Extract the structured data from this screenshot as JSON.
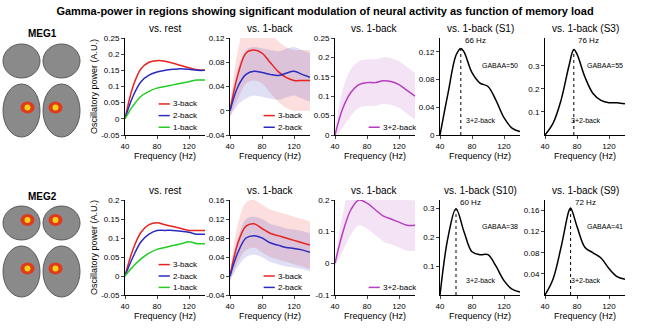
{
  "title": "Gamma-power in regions showing significant modulation of neural activity as function of memory load",
  "chart_data": [
    {
      "type": "line",
      "group": "MEG1",
      "title": "vs. rest",
      "x_label": "Frequency (Hz)",
      "y_label": "Oscillatory power (A.U.)",
      "xlim": [
        40,
        140
      ],
      "xticks": [
        40,
        80,
        120
      ],
      "ylim": [
        -0.05,
        0.25
      ],
      "yticks": [
        -0.05,
        0,
        0.05,
        0.1,
        0.15,
        0.2,
        0.25
      ],
      "legend": "lower right",
      "x": [
        40,
        50,
        60,
        70,
        80,
        90,
        100,
        110,
        120,
        130,
        140
      ],
      "series": [
        {
          "name": "3-back",
          "color": "#e8231f",
          "values": [
            0.0,
            0.1,
            0.155,
            0.175,
            0.18,
            0.178,
            0.172,
            0.165,
            0.158,
            0.152,
            0.15
          ]
        },
        {
          "name": "2-back",
          "color": "#2b2bbf",
          "values": [
            0.0,
            0.07,
            0.115,
            0.135,
            0.145,
            0.15,
            0.153,
            0.155,
            0.153,
            0.15,
            0.15
          ]
        },
        {
          "name": "1-back",
          "color": "#22cc22",
          "values": [
            0.0,
            0.04,
            0.07,
            0.085,
            0.095,
            0.1,
            0.105,
            0.11,
            0.115,
            0.12,
            0.12
          ]
        }
      ]
    },
    {
      "type": "line",
      "group": "MEG1",
      "title": "vs. 1-back",
      "x_label": "Frequency (Hz)",
      "xlim": [
        40,
        140
      ],
      "xticks": [
        40,
        80,
        120
      ],
      "ylim": [
        -0.04,
        0.12
      ],
      "yticks": [
        -0.04,
        0,
        0.04,
        0.08,
        0.12
      ],
      "legend": "lower right",
      "x": [
        40,
        50,
        60,
        70,
        80,
        90,
        100,
        110,
        120,
        130,
        140
      ],
      "series": [
        {
          "name": "3-back",
          "color": "#e8231f",
          "values": [
            0.0,
            0.06,
            0.095,
            0.1,
            0.095,
            0.08,
            0.065,
            0.055,
            0.05,
            0.05,
            0.05
          ],
          "error": [
            0.01,
            0.04,
            0.05,
            0.05,
            0.05,
            0.05,
            0.05,
            0.05,
            0.05,
            0.05,
            0.05
          ]
        },
        {
          "name": "2-back",
          "color": "#2b2bbf",
          "values": [
            0.0,
            0.04,
            0.06,
            0.065,
            0.063,
            0.06,
            0.058,
            0.062,
            0.065,
            0.06,
            0.055
          ],
          "error": [
            0.01,
            0.03,
            0.04,
            0.04,
            0.04,
            0.04,
            0.04,
            0.04,
            0.04,
            0.04,
            0.04
          ]
        }
      ]
    },
    {
      "type": "line",
      "group": "MEG1",
      "title": "vs. 1-back",
      "x_label": "Frequency (Hz)",
      "xlim": [
        40,
        140
      ],
      "xticks": [
        40,
        80,
        120
      ],
      "ylim": [
        0,
        0.25
      ],
      "yticks": [
        0,
        0.05,
        0.1,
        0.15,
        0.2,
        0.25
      ],
      "legend": "lower right",
      "x": [
        40,
        50,
        60,
        70,
        80,
        90,
        100,
        110,
        120,
        130,
        140
      ],
      "series": [
        {
          "name": "3+2-back",
          "color": "#b43fbf",
          "values": [
            0.0,
            0.07,
            0.11,
            0.13,
            0.135,
            0.135,
            0.14,
            0.138,
            0.13,
            0.115,
            0.1
          ],
          "error": [
            0.01,
            0.05,
            0.06,
            0.06,
            0.06,
            0.06,
            0.06,
            0.06,
            0.06,
            0.06,
            0.06
          ]
        }
      ]
    },
    {
      "type": "line",
      "group": "MEG1",
      "title": "vs. 1-back (S1)",
      "x_label": "Frequency (Hz)",
      "xlim": [
        40,
        140
      ],
      "xticks": [
        40,
        80,
        120
      ],
      "ylim": [
        0,
        0.14
      ],
      "yticks": [
        0,
        0.04,
        0.08,
        0.12
      ],
      "x": [
        40,
        50,
        60,
        66,
        70,
        80,
        90,
        100,
        110,
        120,
        130,
        140
      ],
      "series": [
        {
          "color": "#000000",
          "values": [
            0.0,
            0.06,
            0.115,
            0.125,
            0.12,
            0.09,
            0.075,
            0.07,
            0.05,
            0.025,
            0.01,
            0.005
          ]
        }
      ],
      "vline": {
        "value": 66,
        "label": "66 Hz"
      },
      "annotations": [
        "GABAA=50",
        "3+2-back"
      ]
    },
    {
      "type": "line",
      "group": "MEG1",
      "title": "vs. 1-back (S3)",
      "x_label": "Frequency (Hz)",
      "xlim": [
        40,
        140
      ],
      "xticks": [
        40,
        80,
        120
      ],
      "ylim": [
        0,
        0.42
      ],
      "yticks": [
        0.1,
        0.2,
        0.3
      ],
      "x": [
        40,
        50,
        60,
        70,
        76,
        80,
        90,
        100,
        110,
        120,
        130,
        140
      ],
      "series": [
        {
          "color": "#000000",
          "values": [
            0.0,
            0.05,
            0.15,
            0.3,
            0.37,
            0.35,
            0.25,
            0.18,
            0.15,
            0.14,
            0.14,
            0.135
          ]
        }
      ],
      "vline": {
        "value": 76,
        "label": "76 Hz"
      },
      "annotations": [
        "GABAA=55",
        "3+2-back"
      ]
    },
    {
      "type": "line",
      "group": "MEG2",
      "title": "vs. rest",
      "x_label": "Frequency (Hz)",
      "y_label": "Oscillatory power (A.U.)",
      "xlim": [
        40,
        140
      ],
      "xticks": [
        40,
        80,
        120
      ],
      "ylim": [
        -0.05,
        0.2
      ],
      "yticks": [
        -0.05,
        0,
        0.05,
        0.1,
        0.15,
        0.2
      ],
      "legend": "lower right",
      "x": [
        40,
        50,
        60,
        70,
        80,
        90,
        100,
        110,
        120,
        130,
        140
      ],
      "series": [
        {
          "name": "3-back",
          "color": "#e8231f",
          "values": [
            0.0,
            0.07,
            0.115,
            0.135,
            0.14,
            0.135,
            0.13,
            0.125,
            0.12,
            0.12,
            0.12
          ]
        },
        {
          "name": "2-back",
          "color": "#2b2bbf",
          "values": [
            0.0,
            0.05,
            0.09,
            0.11,
            0.12,
            0.12,
            0.12,
            0.118,
            0.115,
            0.11,
            0.11
          ]
        },
        {
          "name": "1-back",
          "color": "#22cc22",
          "values": [
            0.0,
            0.025,
            0.045,
            0.06,
            0.07,
            0.075,
            0.08,
            0.085,
            0.09,
            0.085,
            0.085
          ]
        }
      ]
    },
    {
      "type": "line",
      "group": "MEG2",
      "title": "vs. 1-back",
      "x_label": "Frequency (Hz)",
      "xlim": [
        40,
        140
      ],
      "xticks": [
        40,
        80,
        120
      ],
      "ylim": [
        -0.04,
        0.16
      ],
      "yticks": [
        -0.04,
        0,
        0.04,
        0.08,
        0.12,
        0.16
      ],
      "legend": "lower right",
      "x": [
        40,
        50,
        60,
        70,
        80,
        90,
        100,
        110,
        120,
        130,
        140
      ],
      "series": [
        {
          "name": "3-back",
          "color": "#e8231f",
          "values": [
            0.0,
            0.07,
            0.105,
            0.11,
            0.1,
            0.09,
            0.085,
            0.08,
            0.075,
            0.07,
            0.065
          ],
          "error": [
            0.01,
            0.04,
            0.05,
            0.05,
            0.05,
            0.05,
            0.05,
            0.05,
            0.05,
            0.05,
            0.05
          ]
        },
        {
          "name": "2-back",
          "color": "#2b2bbf",
          "values": [
            0.0,
            0.05,
            0.08,
            0.085,
            0.08,
            0.07,
            0.065,
            0.06,
            0.058,
            0.055,
            0.05
          ],
          "error": [
            0.01,
            0.03,
            0.04,
            0.04,
            0.04,
            0.04,
            0.04,
            0.04,
            0.04,
            0.04,
            0.04
          ]
        }
      ]
    },
    {
      "type": "line",
      "group": "MEG2",
      "title": "vs. 1-back",
      "x_label": "Frequency (Hz)",
      "xlim": [
        40,
        140
      ],
      "xticks": [
        40,
        80,
        120
      ],
      "ylim": [
        -0.1,
        0.2
      ],
      "yticks": [
        -0.1,
        0,
        0.1,
        0.2
      ],
      "legend": "lower right",
      "x": [
        40,
        50,
        60,
        70,
        80,
        90,
        100,
        110,
        120,
        130,
        140
      ],
      "series": [
        {
          "name": "3+2-back",
          "color": "#b43fbf",
          "values": [
            0.0,
            0.1,
            0.17,
            0.2,
            0.19,
            0.17,
            0.15,
            0.14,
            0.13,
            0.12,
            0.12
          ],
          "error": [
            0.01,
            0.06,
            0.08,
            0.08,
            0.08,
            0.08,
            0.08,
            0.08,
            0.08,
            0.08,
            0.08
          ]
        }
      ]
    },
    {
      "type": "line",
      "group": "MEG2",
      "title": "vs. 1-back (S10)",
      "x_label": "Frequency (Hz)",
      "xlim": [
        40,
        140
      ],
      "xticks": [
        40,
        80,
        120
      ],
      "ylim": [
        0,
        0.33
      ],
      "yticks": [
        0.1,
        0.2,
        0.3
      ],
      "x": [
        40,
        50,
        60,
        70,
        80,
        90,
        100,
        110,
        120,
        130,
        140
      ],
      "series": [
        {
          "color": "#000000",
          "values": [
            0.0,
            0.2,
            0.3,
            0.22,
            0.15,
            0.14,
            0.14,
            0.1,
            0.05,
            0.02,
            0.01
          ]
        }
      ],
      "vline": {
        "value": 60,
        "label": "60 Hz"
      },
      "annotations": [
        "GABAA=38",
        "3+2-back"
      ]
    },
    {
      "type": "line",
      "group": "MEG2",
      "title": "vs. 1-back (S9)",
      "x_label": "Frequency (Hz)",
      "xlim": [
        40,
        140
      ],
      "xticks": [
        40,
        80,
        120
      ],
      "ylim": [
        0,
        0.18
      ],
      "yticks": [
        0.04,
        0.08,
        0.12,
        0.16
      ],
      "x": [
        40,
        50,
        60,
        70,
        72,
        80,
        90,
        100,
        110,
        120,
        130,
        140
      ],
      "series": [
        {
          "color": "#000000",
          "values": [
            0.0,
            0.03,
            0.09,
            0.16,
            0.165,
            0.13,
            0.09,
            0.08,
            0.07,
            0.05,
            0.035,
            0.03
          ]
        }
      ],
      "vline": {
        "value": 72,
        "label": "72 Hz"
      },
      "annotations": [
        "GABAA=41",
        "3+2-back"
      ]
    }
  ]
}
